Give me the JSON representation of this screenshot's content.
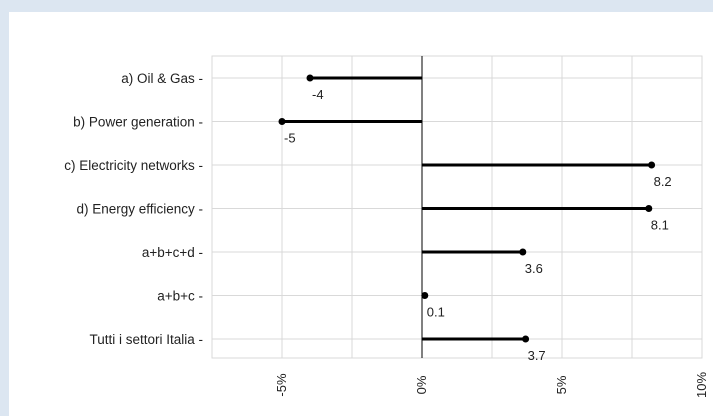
{
  "chart_data": {
    "type": "bar",
    "orientation": "horizontal",
    "style": "lollipop",
    "categories": [
      "a) Oil & Gas -",
      "b) Power generation -",
      "c) Electricity networks -",
      "d) Energy efficiency -",
      "a+b+c+d -",
      "a+b+c -",
      "Tutti i settori Italia -"
    ],
    "values": [
      -4,
      -5,
      8.2,
      8.1,
      3.6,
      0.1,
      3.7
    ],
    "value_labels": [
      "-4",
      "-5",
      "8.2",
      "8.1",
      "3.6",
      "0.1",
      "3.7"
    ],
    "x_ticks": [
      -5,
      0,
      5,
      10
    ],
    "x_tick_labels": [
      "-5%",
      "0%",
      "5%",
      "10%"
    ],
    "xlim": [
      -7.5,
      10
    ],
    "grid": true,
    "colors": {
      "bar": "#000000",
      "grid": "#d9d9d9",
      "background": "#dce6f1",
      "plot_bg": "#ffffff"
    }
  }
}
